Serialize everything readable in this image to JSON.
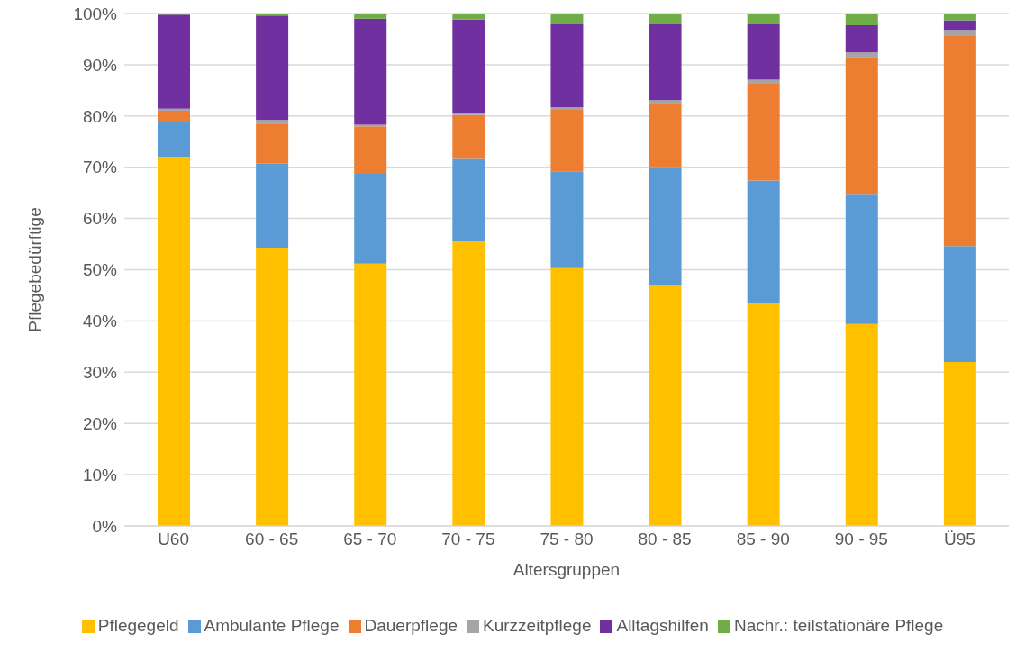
{
  "chart_data": {
    "type": "bar",
    "stacked": true,
    "xlabel": "Altersgruppen",
    "ylabel": "Pflegebedürftige",
    "categories": [
      "U60",
      "60 - 65",
      "65 - 70",
      "70 - 75",
      "75 - 80",
      "80 - 85",
      "85 - 90",
      "90 - 95",
      "Ü95"
    ],
    "series": [
      {
        "name": "Pflegegeld",
        "color": "#ffc000",
        "values": [
          72,
          54.3,
          51.2,
          55.5,
          50.3,
          47,
          43.5,
          39.4,
          32
        ]
      },
      {
        "name": "Ambulante Pflege",
        "color": "#5b9bd5",
        "values": [
          6.8,
          16.4,
          17.5,
          16.1,
          18.9,
          23,
          23.9,
          25.4,
          22.6
        ]
      },
      {
        "name": "Dauerpflege",
        "color": "#ed7d31",
        "values": [
          2.2,
          7.8,
          9.3,
          8.6,
          12,
          12.3,
          18.9,
          26.7,
          41
        ]
      },
      {
        "name": "Kurzzeitpflege",
        "color": "#a5a5a5",
        "values": [
          0.4,
          0.7,
          0.3,
          0.4,
          0.5,
          0.8,
          0.8,
          0.9,
          1.2
        ]
      },
      {
        "name": "Alltagshilfen",
        "color": "#7030a0",
        "values": [
          18.4,
          20.4,
          20.7,
          18.2,
          16.2,
          14.8,
          10.8,
          5.3,
          1.9
        ]
      },
      {
        "name": "Nachr.: teilstationäre Pflege",
        "color": "#70ad47",
        "values": [
          0.2,
          0.4,
          1,
          1.2,
          2.1,
          2.1,
          2.1,
          2.3,
          1.3
        ]
      }
    ],
    "ylim": [
      0,
      100
    ],
    "yticks": [
      {
        "value": 0,
        "label": "0%"
      },
      {
        "value": 10,
        "label": "10%"
      },
      {
        "value": 20,
        "label": "20%"
      },
      {
        "value": 30,
        "label": "30%"
      },
      {
        "value": 40,
        "label": "40%"
      },
      {
        "value": 50,
        "label": "50%"
      },
      {
        "value": 60,
        "label": "60%"
      },
      {
        "value": 70,
        "label": "70%"
      },
      {
        "value": 80,
        "label": "80%"
      },
      {
        "value": 90,
        "label": "90%"
      },
      {
        "value": 100,
        "label": "100%"
      }
    ],
    "grid": "y",
    "legend": "bottom"
  }
}
